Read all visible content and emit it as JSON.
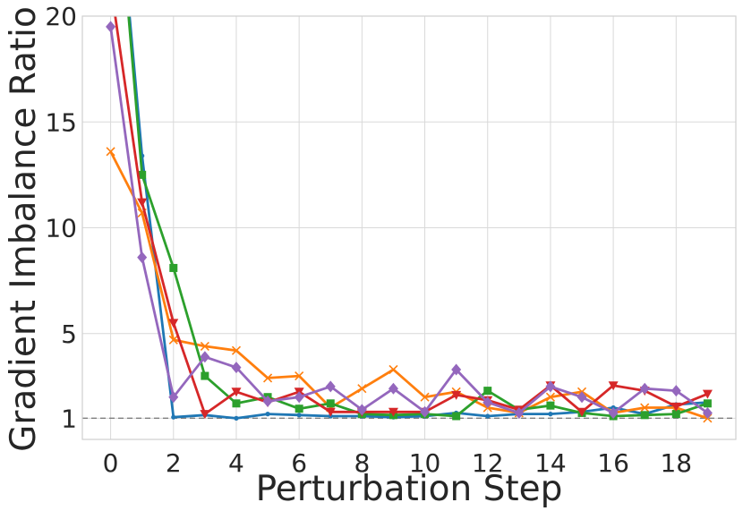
{
  "chart_data": {
    "type": "line",
    "title": "",
    "xlabel": "Perturbation Step",
    "ylabel": "Gradient Imbalance Ratio",
    "xlim": [
      -0.9,
      19.9
    ],
    "ylim": [
      0,
      20
    ],
    "x_ticks": [
      0,
      2,
      4,
      6,
      8,
      10,
      12,
      14,
      16,
      18
    ],
    "y_ticks": [
      1,
      5,
      10,
      15,
      20
    ],
    "grid": true,
    "legend": "none",
    "reference_line": {
      "y": 1,
      "style": "dashed",
      "color": "#7f7f7f"
    },
    "x": [
      0,
      1,
      2,
      3,
      4,
      5,
      6,
      7,
      8,
      9,
      10,
      11,
      12,
      13,
      14,
      15,
      16,
      17,
      18,
      19
    ],
    "series": [
      {
        "color": "#1f77b4",
        "marker": "dot",
        "values": [
          30.0,
          13.4,
          1.05,
          1.15,
          1.0,
          1.2,
          1.15,
          1.1,
          1.1,
          1.05,
          1.1,
          1.25,
          1.1,
          1.2,
          1.2,
          1.3,
          1.5,
          1.2,
          1.65,
          1.75
        ]
      },
      {
        "color": "#ff7f0e",
        "marker": "x",
        "values": [
          13.6,
          10.7,
          4.7,
          4.4,
          4.2,
          2.9,
          3.0,
          1.5,
          2.4,
          3.3,
          2.0,
          2.25,
          1.5,
          1.25,
          2.0,
          2.25,
          1.25,
          1.5,
          1.5,
          1.0
        ]
      },
      {
        "color": "#2ca02c",
        "marker": "square",
        "values": [
          30.0,
          12.5,
          8.1,
          3.0,
          1.7,
          2.0,
          1.45,
          1.7,
          1.2,
          1.15,
          1.2,
          1.1,
          2.3,
          1.4,
          1.6,
          1.25,
          1.1,
          1.15,
          1.2,
          1.7
        ]
      },
      {
        "color": "#d62728",
        "marker": "triangle-down",
        "values": [
          21.5,
          11.2,
          5.5,
          1.2,
          2.25,
          1.75,
          2.25,
          1.3,
          1.3,
          1.3,
          1.3,
          2.1,
          1.85,
          1.4,
          2.55,
          1.3,
          2.55,
          2.3,
          1.55,
          2.15
        ]
      },
      {
        "color": "#9467bd",
        "marker": "diamond",
        "values": [
          19.5,
          8.6,
          2.0,
          3.9,
          3.4,
          1.8,
          2.0,
          2.5,
          1.4,
          2.4,
          1.3,
          3.3,
          1.75,
          1.25,
          2.5,
          2.0,
          1.25,
          2.4,
          2.3,
          1.25
        ]
      }
    ]
  }
}
